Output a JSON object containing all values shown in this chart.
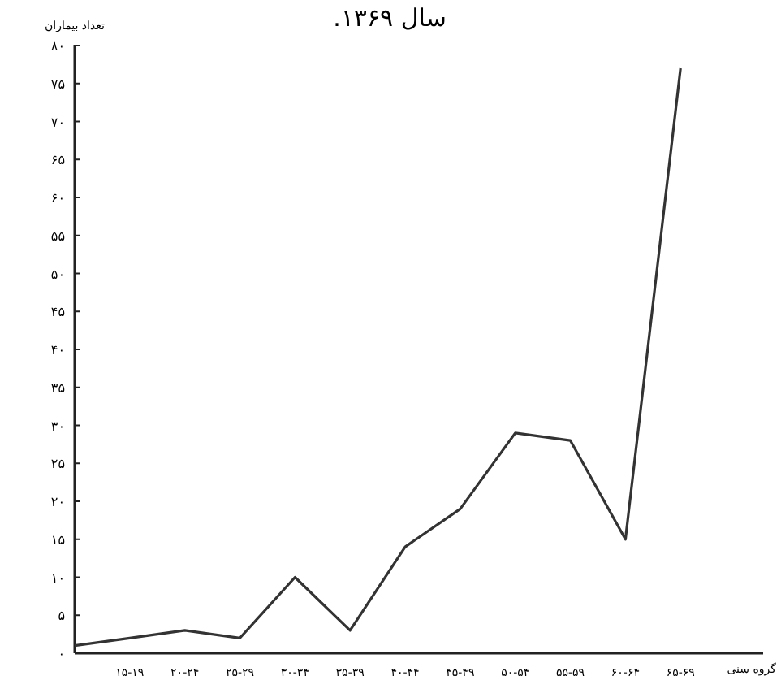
{
  "chart_data": {
    "type": "line",
    "title": "سال ۱۳۶۹.",
    "ylabel": "تعداد بیماران",
    "xlabel": "گروه سنی",
    "categories": [
      null,
      "۱۵-۱۹",
      "۲۰-۲۴",
      "۲۵-۲۹",
      "۳۰-۳۴",
      "۳۵-۳۹",
      "۴۰-۴۴",
      "۴۵-۴۹",
      "۵۰-۵۴",
      "۵۵-۵۹",
      "۶۰-۶۴",
      "۶۵-۶۹"
    ],
    "values": [
      1,
      2,
      3,
      2,
      10,
      3,
      14,
      19,
      29,
      28,
      15,
      77
    ],
    "color": "#333333",
    "grid": false,
    "marker": "none",
    "line_style": "solid",
    "ylim": [
      0,
      80
    ],
    "yticks": [
      {
        "value": 0,
        "label": "۰"
      },
      {
        "value": 5,
        "label": "۵"
      },
      {
        "value": 10,
        "label": "۱۰"
      },
      {
        "value": 15,
        "label": "۱۵"
      },
      {
        "value": 20,
        "label": "۲۰"
      },
      {
        "value": 25,
        "label": "۲۵"
      },
      {
        "value": 30,
        "label": "۳۰"
      },
      {
        "value": 35,
        "label": "۳۵"
      },
      {
        "value": 40,
        "label": "۴۰"
      },
      {
        "value": 45,
        "label": "۴۵"
      },
      {
        "value": 50,
        "label": "۵۰"
      },
      {
        "value": 55,
        "label": "۵۵"
      },
      {
        "value": 60,
        "label": "۶۰"
      },
      {
        "value": 65,
        "label": "۶۵"
      },
      {
        "value": 70,
        "label": "۷۰"
      },
      {
        "value": 75,
        "label": "۷۵"
      },
      {
        "value": 80,
        "label": "۸۰"
      }
    ]
  }
}
